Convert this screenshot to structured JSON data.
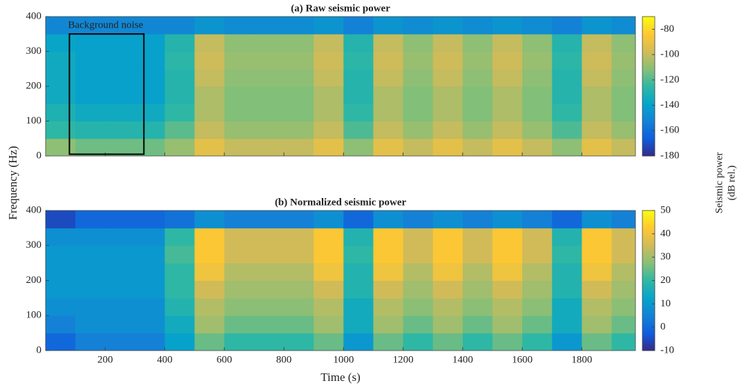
{
  "chart_data": [
    {
      "type": "heatmap",
      "title": "(a) Raw seismic power",
      "ylabel": "Frequency (Hz)",
      "colorbar_label": [
        "Seismic power",
        "(dB rel.)"
      ],
      "x": [
        50,
        150,
        250,
        350,
        450,
        550,
        650,
        750,
        850,
        950,
        1050,
        1150,
        1250,
        1350,
        1450,
        1550,
        1650,
        1750,
        1850,
        1950
      ],
      "y": [
        25,
        75,
        125,
        175,
        225,
        275,
        325,
        375
      ],
      "z": [
        [
          -110,
          -115,
          -115,
          -115,
          -108,
          -92,
          -100,
          -100,
          -100,
          -92,
          -110,
          -92,
          -100,
          -92,
          -100,
          -92,
          -100,
          -110,
          -92,
          -100
        ],
        [
          -125,
          -128,
          -128,
          -128,
          -118,
          -100,
          -108,
          -108,
          -108,
          -100,
          -120,
          -100,
          -108,
          -100,
          -108,
          -100,
          -108,
          -120,
          -100,
          -108
        ],
        [
          -130,
          -135,
          -135,
          -135,
          -125,
          -104,
          -112,
          -112,
          -112,
          -104,
          -125,
          -104,
          -112,
          -104,
          -112,
          -104,
          -112,
          -125,
          -104,
          -112
        ],
        [
          -135,
          -140,
          -140,
          -140,
          -128,
          -104,
          -112,
          -112,
          -112,
          -104,
          -128,
          -104,
          -112,
          -104,
          -112,
          -104,
          -112,
          -128,
          -104,
          -112
        ],
        [
          -135,
          -140,
          -140,
          -140,
          -128,
          -100,
          -110,
          -110,
          -110,
          -100,
          -128,
          -100,
          -110,
          -100,
          -110,
          -100,
          -110,
          -128,
          -100,
          -110
        ],
        [
          -135,
          -140,
          -140,
          -140,
          -126,
          -98,
          -108,
          -108,
          -108,
          -98,
          -126,
          -98,
          -108,
          -98,
          -108,
          -98,
          -108,
          -126,
          -98,
          -108
        ],
        [
          -138,
          -140,
          -140,
          -140,
          -128,
          -100,
          -110,
          -110,
          -110,
          -100,
          -128,
          -100,
          -110,
          -100,
          -110,
          -100,
          -110,
          -128,
          -100,
          -110
        ],
        [
          -150,
          -150,
          -150,
          -150,
          -150,
          -145,
          -148,
          -148,
          -148,
          -145,
          -152,
          -145,
          -148,
          -145,
          -148,
          -145,
          -148,
          -152,
          -145,
          -148
        ]
      ],
      "xlim": [
        0,
        1980
      ],
      "ylim": [
        0,
        400
      ],
      "yticks": [
        0,
        100,
        200,
        300,
        400
      ],
      "xticks": [
        200,
        400,
        600,
        800,
        1000,
        1200,
        1400,
        1600,
        1800
      ],
      "clim": [
        -180,
        -70
      ],
      "cticks": [
        -180,
        -160,
        -140,
        -120,
        -100,
        -80
      ],
      "colormap": [
        "#352a87",
        "#0f5cdd",
        "#1481d6",
        "#06a4ca",
        "#2eb7a4",
        "#87bf77",
        "#d1bb59",
        "#fec832",
        "#f9fb0e"
      ],
      "annotation": {
        "text": "Background noise",
        "x": [
          80,
          330
        ],
        "y": [
          5,
          350
        ],
        "color": "#000000"
      }
    },
    {
      "type": "heatmap",
      "title": "(b) Normalized seismic power",
      "xlabel": "Time (s)",
      "x": [
        50,
        150,
        250,
        350,
        450,
        550,
        650,
        750,
        850,
        950,
        1050,
        1150,
        1250,
        1350,
        1450,
        1550,
        1650,
        1750,
        1850,
        1950
      ],
      "y": [
        25,
        75,
        125,
        175,
        225,
        275,
        325,
        375
      ],
      "z": [
        [
          0,
          5,
          5,
          5,
          12,
          25,
          20,
          20,
          20,
          25,
          10,
          25,
          20,
          25,
          20,
          25,
          20,
          10,
          25,
          20
        ],
        [
          5,
          8,
          8,
          8,
          15,
          30,
          25,
          25,
          25,
          30,
          15,
          30,
          25,
          30,
          25,
          30,
          25,
          15,
          30,
          25
        ],
        [
          8,
          8,
          8,
          8,
          18,
          32,
          28,
          28,
          28,
          32,
          15,
          32,
          28,
          32,
          28,
          32,
          28,
          15,
          32,
          28
        ],
        [
          10,
          10,
          10,
          10,
          20,
          35,
          30,
          30,
          30,
          35,
          18,
          35,
          30,
          35,
          30,
          35,
          30,
          18,
          35,
          30
        ],
        [
          10,
          10,
          10,
          10,
          20,
          40,
          32,
          32,
          32,
          40,
          18,
          40,
          32,
          40,
          32,
          40,
          32,
          18,
          40,
          32
        ],
        [
          10,
          10,
          10,
          10,
          22,
          42,
          35,
          35,
          35,
          42,
          20,
          42,
          35,
          42,
          35,
          42,
          35,
          20,
          42,
          35
        ],
        [
          8,
          8,
          8,
          8,
          20,
          42,
          35,
          35,
          35,
          42,
          18,
          42,
          35,
          42,
          35,
          42,
          35,
          18,
          42,
          35
        ],
        [
          -5,
          0,
          0,
          0,
          2,
          8,
          5,
          5,
          5,
          8,
          0,
          8,
          5,
          8,
          5,
          8,
          5,
          0,
          8,
          5
        ]
      ],
      "xlim": [
        0,
        1980
      ],
      "ylim": [
        0,
        400
      ],
      "yticks": [
        0,
        100,
        200,
        300,
        400
      ],
      "xticks": [
        200,
        400,
        600,
        800,
        1000,
        1200,
        1400,
        1600,
        1800
      ],
      "clim": [
        -10,
        50
      ],
      "cticks": [
        -10,
        0,
        10,
        20,
        30,
        40,
        50
      ],
      "colormap": [
        "#352a87",
        "#0f5cdd",
        "#1481d6",
        "#06a4ca",
        "#2eb7a4",
        "#87bf77",
        "#d1bb59",
        "#fec832",
        "#f9fb0e"
      ]
    }
  ]
}
